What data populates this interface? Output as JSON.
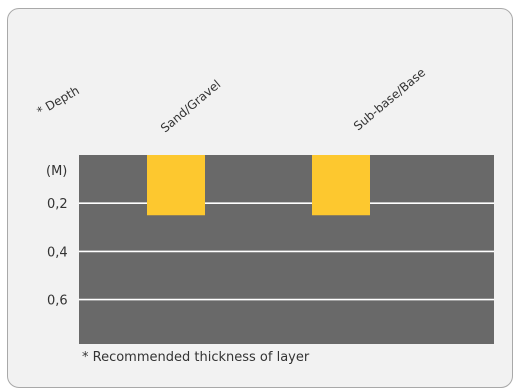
{
  "chart_data": {
    "type": "bar",
    "title": "",
    "ylabel": "* Depth",
    "yunit": "(M)",
    "yticks": [
      "0,2",
      "0,4",
      "0,6"
    ],
    "ytick_values": [
      0.2,
      0.4,
      0.6
    ],
    "ylim": [
      0,
      0.8
    ],
    "y_inverted": true,
    "grid": true,
    "categories": [
      "Sand/Gravel",
      "Sub-base/Base"
    ],
    "values": [
      0.25,
      0.25
    ],
    "footnote": "* Recommended thickness of layer"
  },
  "colors": {
    "panel": "#696969",
    "bar": "#fdc82f",
    "grid": "#ffffff",
    "card": "#f2f2f2"
  }
}
